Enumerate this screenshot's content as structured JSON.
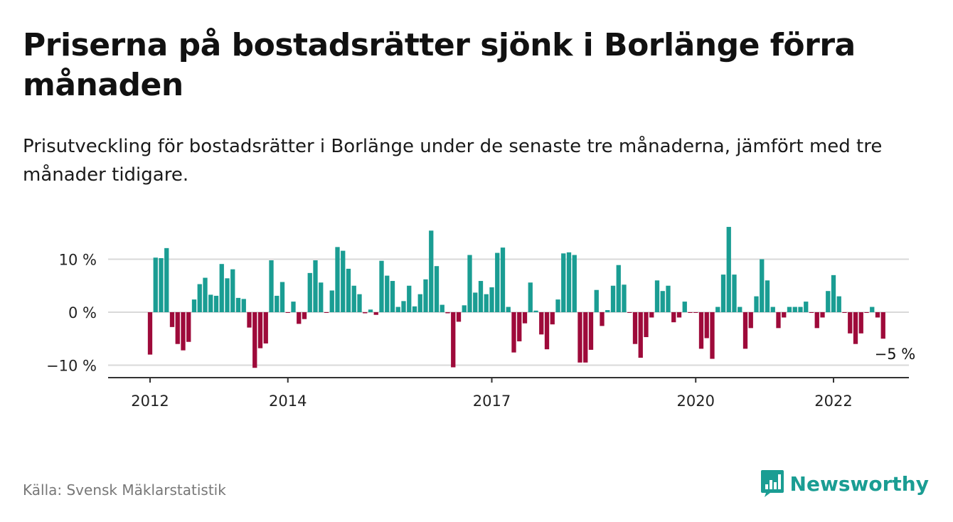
{
  "header": {
    "title": "Priserna på bostadsrätter sjönk i Borlänge förra månaden",
    "subtitle": "Prisutveckling för bostadsrätter i Borlänge under de senaste tre månaderna, jämfört med tre månader tidigare."
  },
  "footer": {
    "source": "Källa: Svensk Mäklarstatistik",
    "brand": "Newsworthy"
  },
  "colors": {
    "positive": "#1a9d93",
    "negative": "#9e0a3a",
    "grid": "#d9d9d9",
    "axis": "#333333",
    "brand": "#1a9d93"
  },
  "chart_data": {
    "type": "bar",
    "ylim": [
      -12.5,
      17
    ],
    "y_ticks": [
      -10,
      0,
      10
    ],
    "y_tick_labels": [
      "−10 %",
      "0 %",
      "10 %"
    ],
    "grid": true,
    "x_tick_labels": [
      {
        "label": "2012",
        "index": 0
      },
      {
        "label": "2014",
        "index": 25
      },
      {
        "label": "2017",
        "index": 62
      },
      {
        "label": "2020",
        "index": 99
      },
      {
        "label": "2022",
        "index": 124
      }
    ],
    "annotation": {
      "text": "−5 %",
      "index": 135
    },
    "values": [
      -8,
      10.3,
      10.2,
      12.1,
      -2.8,
      -6,
      -7.2,
      -5.6,
      2.4,
      5.3,
      6.5,
      3.3,
      3.1,
      9.1,
      6.4,
      8.1,
      2.7,
      2.5,
      -2.9,
      -10.5,
      -6.8,
      -5.9,
      9.8,
      3.1,
      5.7,
      -0.1,
      2,
      -2.2,
      -1.3,
      7.4,
      9.8,
      5.6,
      -0.1,
      4.1,
      12.3,
      11.6,
      8.2,
      5,
      3.4,
      -0.2,
      0.5,
      -0.5,
      9.7,
      6.9,
      5.9,
      1,
      2.1,
      5,
      1.1,
      3.4,
      6.2,
      15.4,
      8.7,
      1.4,
      -0.2,
      -10.4,
      -1.8,
      1.3,
      10.8,
      3.7,
      5.9,
      3.4,
      4.7,
      11.2,
      12.2,
      1,
      -7.6,
      -5.5,
      -2.1,
      5.6,
      0.3,
      -4.2,
      -7,
      -2.3,
      2.4,
      11.1,
      11.3,
      10.8,
      -9.5,
      -9.5,
      -7.1,
      4.2,
      -2.6,
      0.4,
      5,
      8.9,
      5.2,
      -0.1,
      -6,
      -8.6,
      -4.7,
      -1,
      6,
      4,
      5,
      -1.9,
      -1,
      2,
      -0.1,
      -0.1,
      -6.9,
      -4.9,
      -8.8,
      1,
      7.1,
      16.1,
      7.1,
      1,
      -6.9,
      -3,
      3,
      10,
      6,
      1,
      -3,
      -1,
      1,
      1,
      1,
      2,
      -0.1,
      -3,
      -1,
      4,
      7,
      3,
      -0.1,
      -4,
      -6,
      -4,
      -0.1,
      1,
      -1,
      -5
    ]
  }
}
